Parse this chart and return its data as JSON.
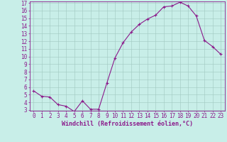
{
  "x": [
    0,
    1,
    2,
    3,
    4,
    5,
    6,
    7,
    8,
    9,
    10,
    11,
    12,
    13,
    14,
    15,
    16,
    17,
    18,
    19,
    20,
    21,
    22,
    23
  ],
  "y": [
    5.5,
    4.8,
    4.7,
    3.7,
    3.5,
    2.8,
    4.2,
    3.1,
    3.1,
    6.5,
    9.8,
    11.8,
    13.2,
    14.2,
    14.9,
    15.4,
    16.5,
    16.6,
    17.1,
    16.6,
    15.3,
    12.1,
    11.3,
    10.3
  ],
  "line_color": "#8b1a8b",
  "marker": "+",
  "marker_size": 3,
  "bg_color": "#c8eee8",
  "grid_color": "#a0c8c0",
  "xlabel": "Windchill (Refroidissement éolien,°C)",
  "ylim": [
    3,
    17
  ],
  "xlim": [
    -0.5,
    23.5
  ],
  "yticks": [
    3,
    4,
    5,
    6,
    7,
    8,
    9,
    10,
    11,
    12,
    13,
    14,
    15,
    16,
    17
  ],
  "xticks": [
    0,
    1,
    2,
    3,
    4,
    5,
    6,
    7,
    8,
    9,
    10,
    11,
    12,
    13,
    14,
    15,
    16,
    17,
    18,
    19,
    20,
    21,
    22,
    23
  ],
  "tick_color": "#8b1a8b",
  "label_fontsize": 6,
  "tick_fontsize": 5.5
}
